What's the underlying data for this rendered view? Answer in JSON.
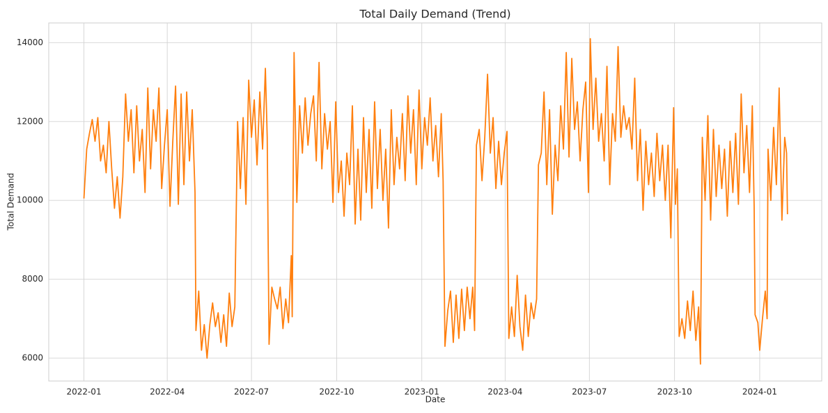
{
  "chart_data": {
    "type": "line",
    "title": "Total Daily Demand (Trend)",
    "x_label": "Date",
    "y_label": "Total Demand",
    "grid": true,
    "xlim": [
      -38,
      797
    ],
    "ylim": [
      5420,
      14500
    ],
    "xticks": [
      {
        "value": 0,
        "label": "2022-01"
      },
      {
        "value": 90,
        "label": "2022-04"
      },
      {
        "value": 181,
        "label": "2022-07"
      },
      {
        "value": 273,
        "label": "2022-10"
      },
      {
        "value": 365,
        "label": "2023-01"
      },
      {
        "value": 455,
        "label": "2023-04"
      },
      {
        "value": 546,
        "label": "2023-07"
      },
      {
        "value": 638,
        "label": "2023-10"
      },
      {
        "value": 730,
        "label": "2024-01"
      }
    ],
    "yticks": [
      6000,
      8000,
      10000,
      12000,
      14000
    ],
    "x": [
      0,
      3,
      6,
      9,
      12,
      15,
      18,
      21,
      24,
      27,
      30,
      33,
      36,
      39,
      42,
      45,
      48,
      51,
      54,
      57,
      60,
      63,
      66,
      69,
      72,
      75,
      78,
      81,
      84,
      87,
      90,
      93,
      96,
      99,
      102,
      105,
      108,
      111,
      114,
      117,
      120,
      121,
      124,
      127,
      130,
      133,
      136,
      139,
      142,
      145,
      148,
      151,
      154,
      157,
      160,
      163,
      166,
      169,
      172,
      175,
      178,
      181,
      184,
      187,
      190,
      193,
      196,
      198,
      200,
      203,
      206,
      209,
      212,
      215,
      218,
      221,
      224,
      225,
      227,
      230,
      233,
      236,
      239,
      242,
      245,
      248,
      251,
      254,
      257,
      260,
      263,
      266,
      269,
      272,
      275,
      278,
      281,
      284,
      287,
      290,
      293,
      296,
      299,
      302,
      305,
      308,
      311,
      314,
      317,
      320,
      323,
      326,
      329,
      332,
      335,
      338,
      341,
      344,
      347,
      350,
      353,
      356,
      359,
      362,
      365,
      368,
      371,
      374,
      377,
      380,
      383,
      386,
      388,
      390,
      393,
      396,
      399,
      402,
      405,
      408,
      411,
      414,
      417,
      420,
      422,
      424,
      427,
      430,
      433,
      436,
      439,
      442,
      445,
      448,
      451,
      454,
      457,
      459,
      462,
      465,
      468,
      471,
      474,
      477,
      480,
      483,
      486,
      489,
      491,
      494,
      497,
      500,
      503,
      506,
      509,
      512,
      515,
      518,
      521,
      524,
      527,
      530,
      533,
      536,
      539,
      542,
      545,
      547,
      550,
      553,
      556,
      559,
      562,
      565,
      568,
      571,
      574,
      577,
      580,
      583,
      586,
      589,
      592,
      595,
      598,
      601,
      604,
      607,
      610,
      613,
      616,
      619,
      622,
      625,
      628,
      631,
      634,
      637,
      639,
      641,
      643,
      646,
      649,
      652,
      655,
      658,
      661,
      664,
      666,
      668,
      671,
      674,
      677,
      680,
      683,
      686,
      689,
      692,
      695,
      698,
      701,
      704,
      707,
      710,
      713,
      716,
      719,
      722,
      724,
      725,
      728,
      730,
      733,
      736,
      738,
      739,
      742,
      745,
      748,
      751,
      754,
      757,
      759,
      760
    ],
    "series": [
      {
        "name": "Total Demand",
        "color": "#ff7f0e",
        "values": [
          10050,
          11300,
          11700,
          12050,
          11500,
          12100,
          11000,
          11400,
          10700,
          12000,
          10800,
          9800,
          10600,
          9550,
          10600,
          12700,
          11500,
          12300,
          10700,
          12400,
          11000,
          11800,
          10200,
          12850,
          10800,
          12300,
          11500,
          12850,
          10300,
          11400,
          12300,
          9850,
          11500,
          12900,
          9900,
          12700,
          10400,
          12750,
          11000,
          12300,
          10200,
          6700,
          7700,
          6200,
          6850,
          6000,
          6850,
          7400,
          6800,
          7150,
          6400,
          7100,
          6300,
          7650,
          6800,
          7300,
          12000,
          10300,
          12100,
          9900,
          13050,
          11600,
          12550,
          10900,
          12750,
          11300,
          13350,
          11600,
          6350,
          7800,
          7500,
          7250,
          7800,
          6750,
          7500,
          6900,
          8600,
          7050,
          13750,
          9950,
          12400,
          11200,
          12600,
          11400,
          12200,
          12650,
          11000,
          13500,
          10800,
          12200,
          11300,
          12000,
          9950,
          12500,
          10200,
          11000,
          9600,
          11200,
          10400,
          12400,
          9400,
          11300,
          9500,
          12100,
          10200,
          11800,
          9800,
          12500,
          10300,
          11800,
          10000,
          11300,
          9300,
          12300,
          10400,
          11600,
          10800,
          12200,
          10500,
          12650,
          11200,
          12300,
          10400,
          12800,
          10800,
          12100,
          11400,
          12600,
          11000,
          11900,
          10600,
          12200,
          10500,
          6300,
          7200,
          7700,
          6400,
          7600,
          6500,
          7750,
          6700,
          7800,
          7000,
          7800,
          6700,
          11400,
          11800,
          10500,
          11600,
          13200,
          11200,
          12100,
          10300,
          11500,
          10400,
          11200,
          11750,
          6500,
          7300,
          6550,
          8100,
          6800,
          6200,
          7600,
          6550,
          7400,
          7000,
          7500,
          10900,
          11200,
          12750,
          10400,
          12300,
          9650,
          11400,
          10500,
          12400,
          11300,
          13750,
          11100,
          13600,
          11800,
          12500,
          11000,
          12300,
          13000,
          10200,
          14100,
          11800,
          13100,
          11500,
          12200,
          11000,
          13400,
          10400,
          12200,
          11500,
          13900,
          11600,
          12400,
          11800,
          12100,
          11300,
          13100,
          10500,
          11800,
          9750,
          11500,
          10400,
          11200,
          10100,
          11700,
          10500,
          11400,
          10000,
          11400,
          9050,
          12350,
          9900,
          10800,
          6550,
          7000,
          6500,
          7450,
          6700,
          7700,
          6450,
          7300,
          5850,
          11600,
          10000,
          12150,
          9500,
          11800,
          10100,
          11400,
          10300,
          11300,
          9600,
          11500,
          10200,
          11700,
          9900,
          12700,
          10700,
          11900,
          10200,
          12400,
          9850,
          7100,
          6900,
          6200,
          7000,
          7700,
          7000,
          11300,
          10000,
          11850,
          10400,
          12850,
          9500,
          11600,
          11200,
          9650
        ]
      }
    ]
  }
}
